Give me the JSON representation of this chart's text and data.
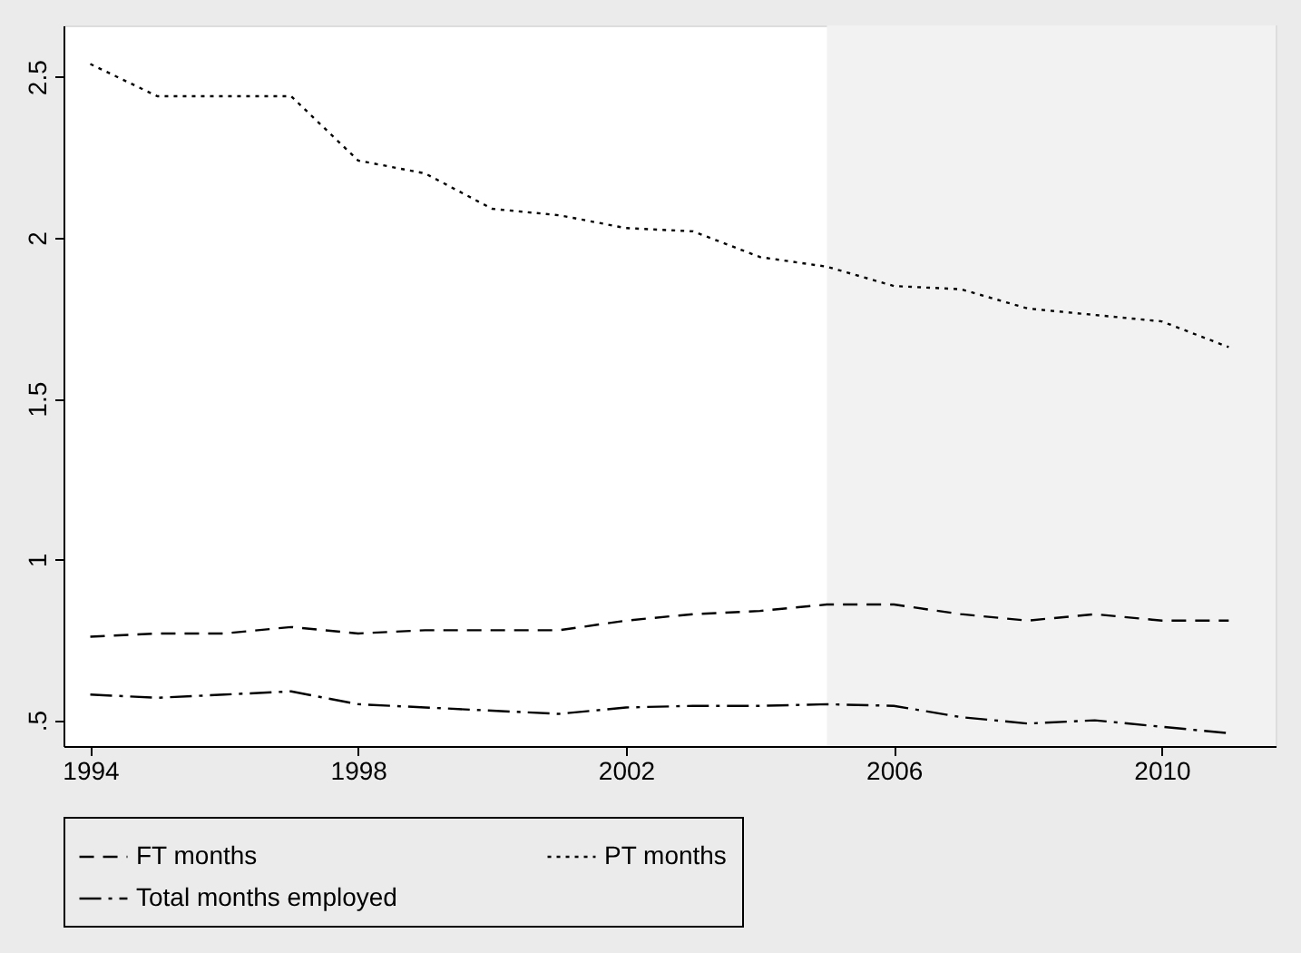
{
  "chart_data": {
    "type": "line",
    "x": [
      1994,
      1995,
      1996,
      1997,
      1998,
      1999,
      2000,
      2001,
      2002,
      2003,
      2004,
      2005,
      2006,
      2007,
      2008,
      2009,
      2010,
      2011
    ],
    "series": [
      {
        "name": "FT months",
        "color": "#000000",
        "line_style": "dashed",
        "values": [
          0.76,
          0.77,
          0.77,
          0.79,
          0.77,
          0.78,
          0.78,
          0.78,
          0.81,
          0.83,
          0.84,
          0.86,
          0.86,
          0.83,
          0.81,
          0.83,
          0.81,
          0.81
        ]
      },
      {
        "name": "PT months",
        "color": "#000000",
        "line_style": "dotted",
        "values": [
          2.54,
          2.44,
          2.44,
          2.44,
          2.24,
          2.2,
          2.09,
          2.07,
          2.03,
          2.02,
          1.94,
          1.91,
          1.85,
          1.84,
          1.78,
          1.76,
          1.74,
          1.66
        ]
      },
      {
        "name": "Total months employed",
        "color": "#000000",
        "line_style": "dashdot",
        "values": [
          0.58,
          0.57,
          0.58,
          0.59,
          0.55,
          0.54,
          0.53,
          0.52,
          0.54,
          0.545,
          0.545,
          0.55,
          0.545,
          0.51,
          0.49,
          0.5,
          0.48,
          0.46
        ]
      }
    ],
    "xlim": [
      1993.6,
      2011.7
    ],
    "xticks": [
      1994,
      1998,
      2002,
      2006,
      2010
    ],
    "ylim": [
      0.42,
      2.66
    ],
    "yticks": [
      {
        "value": 0.5,
        "label": ".5"
      },
      1,
      1.5,
      2,
      2.5
    ],
    "bands": [
      {
        "axis": "x",
        "from": 2005,
        "to": 2011.7,
        "color": "#f2f2f2"
      }
    ],
    "grid": false,
    "legend": "bottom"
  }
}
